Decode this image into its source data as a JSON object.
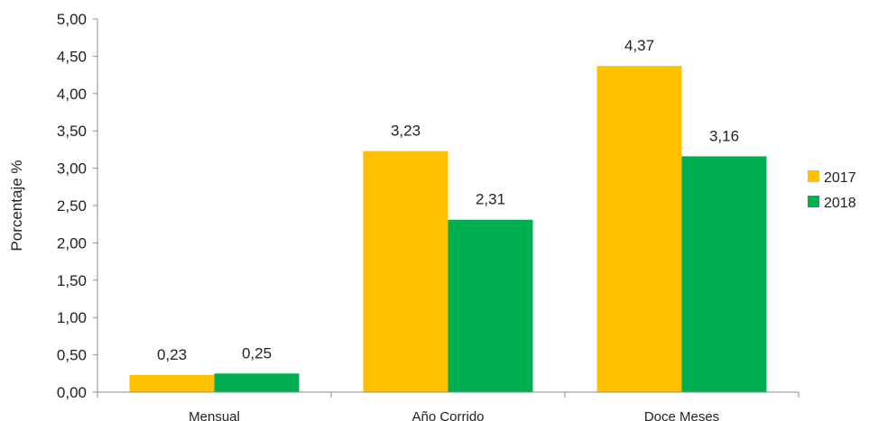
{
  "chart_data": {
    "type": "bar",
    "categories": [
      "Mensual",
      "Año Corrido",
      "Doce Meses"
    ],
    "series": [
      {
        "name": "2017",
        "values": [
          0.23,
          3.23,
          4.37
        ],
        "labels": [
          "0,23",
          "3,23",
          "4,37"
        ],
        "color": "#FFC000"
      },
      {
        "name": "2018",
        "values": [
          0.25,
          2.31,
          3.16
        ],
        "labels": [
          "0,25",
          "2,31",
          "3,16"
        ],
        "color": "#00B050"
      }
    ],
    "ylabel": "Porcentaje %",
    "ylim": [
      0,
      5
    ],
    "yticks": [
      0,
      0.5,
      1,
      1.5,
      2,
      2.5,
      3,
      3.5,
      4,
      4.5,
      5
    ],
    "ytick_labels": [
      "0,00",
      "0,50",
      "1,00",
      "1,50",
      "2,00",
      "2,50",
      "3,00",
      "3,50",
      "4,00",
      "4,50",
      "5,00"
    ],
    "grid": false,
    "legend_position": "right"
  }
}
